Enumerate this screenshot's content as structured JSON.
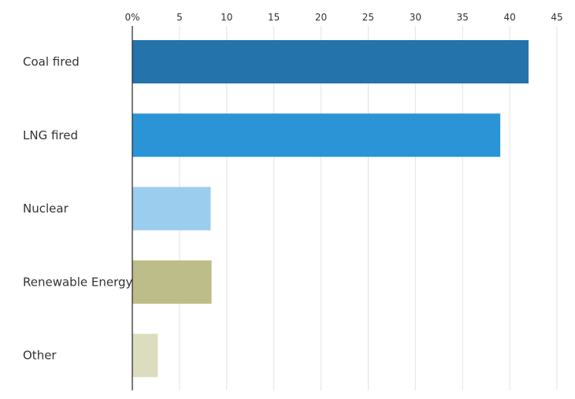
{
  "chart_data": {
    "type": "bar",
    "orientation": "horizontal",
    "categories": [
      "Coal fired",
      "LNG fired",
      "Nuclear",
      "Renewable Energy",
      "Other"
    ],
    "values": [
      42.0,
      39.0,
      8.3,
      8.4,
      2.7
    ],
    "colors": [
      "#2473aa",
      "#2b94d6",
      "#9bcdee",
      "#bcbd88",
      "#dbddbe"
    ],
    "x_ticks": [
      {
        "value": 0,
        "label": "0%"
      },
      {
        "value": 5,
        "label": "5"
      },
      {
        "value": 10,
        "label": "10"
      },
      {
        "value": 15,
        "label": "15"
      },
      {
        "value": 20,
        "label": "20"
      },
      {
        "value": 25,
        "label": "25"
      },
      {
        "value": 30,
        "label": "30"
      },
      {
        "value": 35,
        "label": "35"
      },
      {
        "value": 40,
        "label": "40"
      },
      {
        "value": 45,
        "label": "45"
      }
    ],
    "xlim": [
      0,
      45
    ],
    "grid": "vertical",
    "title": "",
    "xlabel": "",
    "ylabel": ""
  }
}
